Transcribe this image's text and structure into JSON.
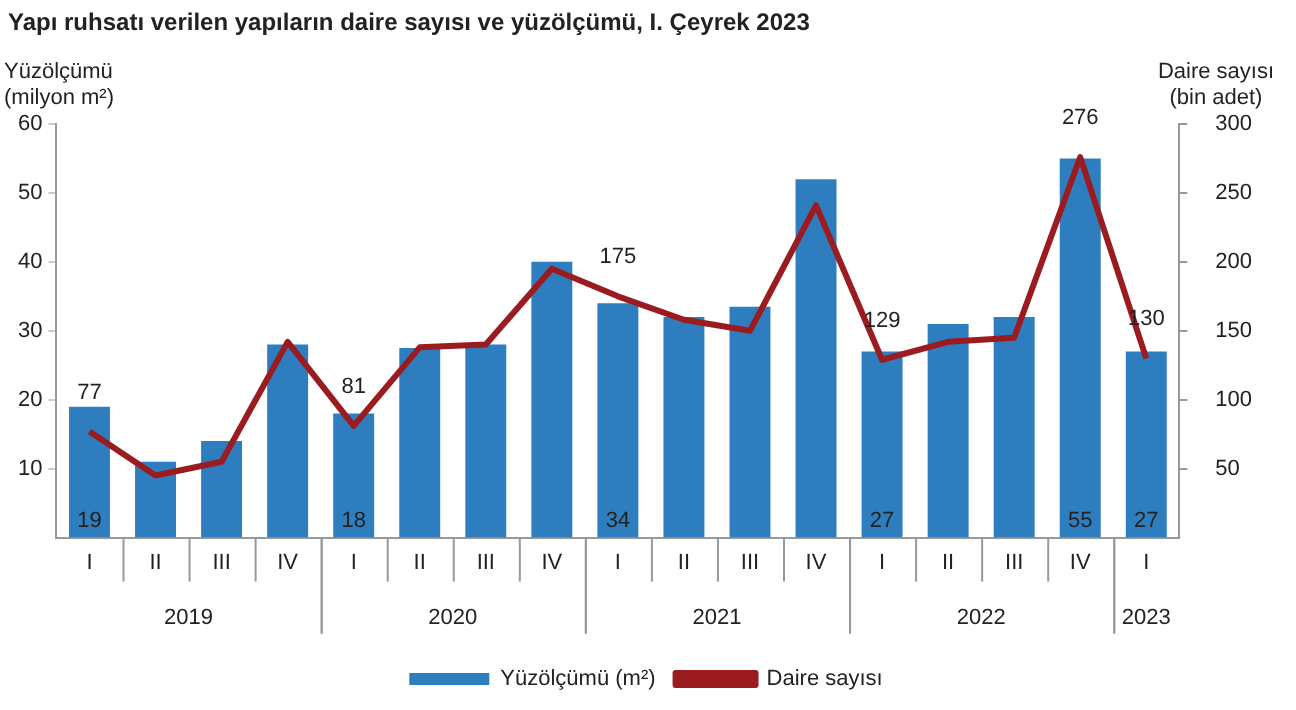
{
  "chart_data": {
    "type": "bar",
    "title": "Yapı ruhsatı verilen yapıların daire sayısı ve yüzölçümü, I. Çeyrek 2023",
    "ylabel": "Yüzölçümü (milyon m²)",
    "y2label": "Daire sayısı (bin adet)",
    "categories": [
      "I",
      "II",
      "III",
      "IV",
      "I",
      "II",
      "III",
      "IV",
      "I",
      "II",
      "III",
      "IV",
      "I",
      "II",
      "III",
      "IV",
      "I"
    ],
    "annotations": [
      "2019",
      "2020",
      "2021",
      "2022",
      "2023"
    ],
    "series": [
      {
        "name": "Yüzölçümü (m²)",
        "color": "#2e7ebf",
        "values": [
          19,
          11,
          14,
          28,
          18,
          27.5,
          28,
          40,
          34,
          32,
          33.5,
          52,
          27,
          31,
          32,
          55,
          27
        ],
        "value_labels": [
          "19",
          null,
          null,
          null,
          "18",
          null,
          null,
          null,
          "34",
          null,
          null,
          null,
          "27",
          null,
          null,
          "55",
          "27"
        ]
      },
      {
        "name": "Daire sayısı",
        "type": "line",
        "axis": "y2",
        "color": "#9b1c20",
        "values": [
          77,
          45,
          55,
          142,
          81,
          138,
          140,
          195,
          175,
          158,
          150,
          241,
          129,
          142,
          145,
          276,
          130
        ],
        "value_labels": [
          "77",
          null,
          null,
          null,
          "81",
          null,
          null,
          null,
          "175",
          null,
          null,
          null,
          "129",
          null,
          null,
          "276",
          "130"
        ]
      }
    ],
    "ylim": [
      0,
      60
    ],
    "yticks": [
      10,
      20,
      30,
      40,
      50,
      60
    ],
    "y2lim": [
      0,
      300
    ],
    "y2ticks": [
      50,
      100,
      150,
      200,
      250,
      300
    ],
    "grid": false,
    "legend": "bottom",
    "marker": "none",
    "line_style": "solid"
  }
}
